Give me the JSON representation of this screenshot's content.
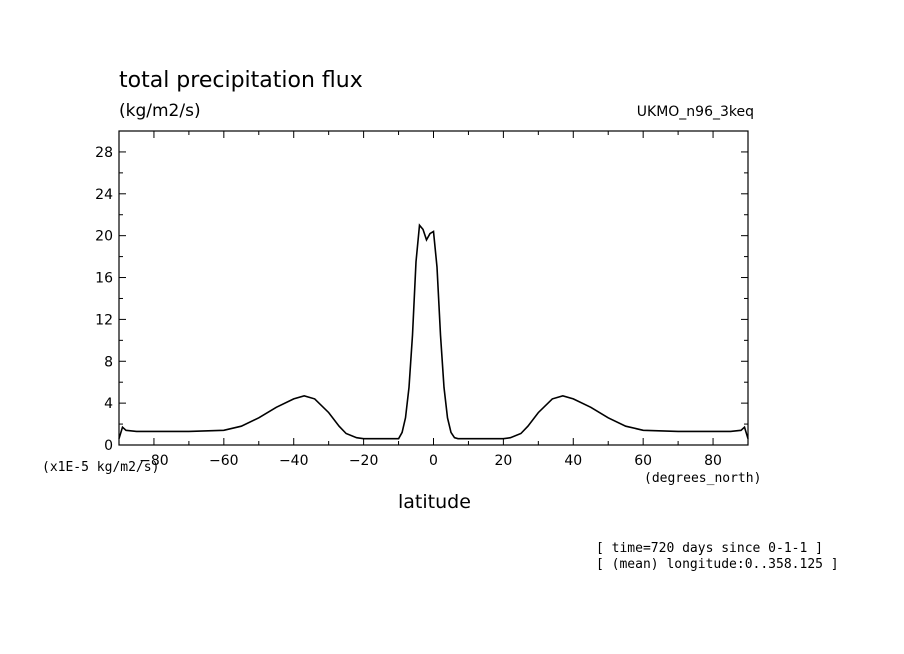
{
  "chart_data": {
    "type": "line",
    "title": "total precipitation flux",
    "subtitle": "(kg/m2/s)",
    "source_label": "UKMO_n96_3keq",
    "xlabel": "latitude",
    "x_unit": "(degrees_north)",
    "y_scale_note": "(x1E-5 kg/m2/s)",
    "notes": [
      "[ time=720 days since 0-1-1 ]",
      "[ (mean) longitude:0..358.125 ]"
    ],
    "xlim": [
      -90,
      90
    ],
    "ylim": [
      0,
      30
    ],
    "x_ticks": [
      -80,
      -60,
      -40,
      -20,
      0,
      20,
      40,
      60,
      80
    ],
    "y_ticks": [
      0,
      4,
      8,
      12,
      16,
      20,
      24,
      28
    ],
    "grid": false,
    "series": [
      {
        "x": [
          -90,
          -89,
          -88,
          -85,
          -80,
          -70,
          -60,
          -55,
          -50,
          -45,
          -40,
          -37,
          -34,
          -30,
          -27,
          -25,
          -22,
          -20,
          -15,
          -10,
          -9,
          -8,
          -7,
          -6,
          -5,
          -4,
          -3,
          -2,
          -1,
          0,
          1,
          2,
          3,
          4,
          5,
          6,
          7,
          8,
          9,
          10,
          15,
          20,
          22,
          25,
          27,
          30,
          34,
          37,
          40,
          45,
          50,
          55,
          60,
          70,
          80,
          85,
          88,
          89,
          90
        ],
        "y": [
          0.6,
          1.7,
          1.4,
          1.3,
          1.3,
          1.3,
          1.4,
          1.8,
          2.6,
          3.6,
          4.4,
          4.7,
          4.4,
          3.1,
          1.8,
          1.1,
          0.7,
          0.6,
          0.6,
          0.6,
          1.2,
          2.6,
          5.5,
          10.5,
          17.5,
          21.0,
          20.6,
          19.6,
          20.2,
          20.4,
          17.0,
          10.5,
          5.5,
          2.6,
          1.2,
          0.7,
          0.6,
          0.6,
          0.6,
          0.6,
          0.6,
          0.6,
          0.7,
          1.1,
          1.8,
          3.1,
          4.4,
          4.7,
          4.4,
          3.6,
          2.6,
          1.8,
          1.4,
          1.3,
          1.3,
          1.3,
          1.4,
          1.7,
          0.6
        ]
      }
    ]
  }
}
